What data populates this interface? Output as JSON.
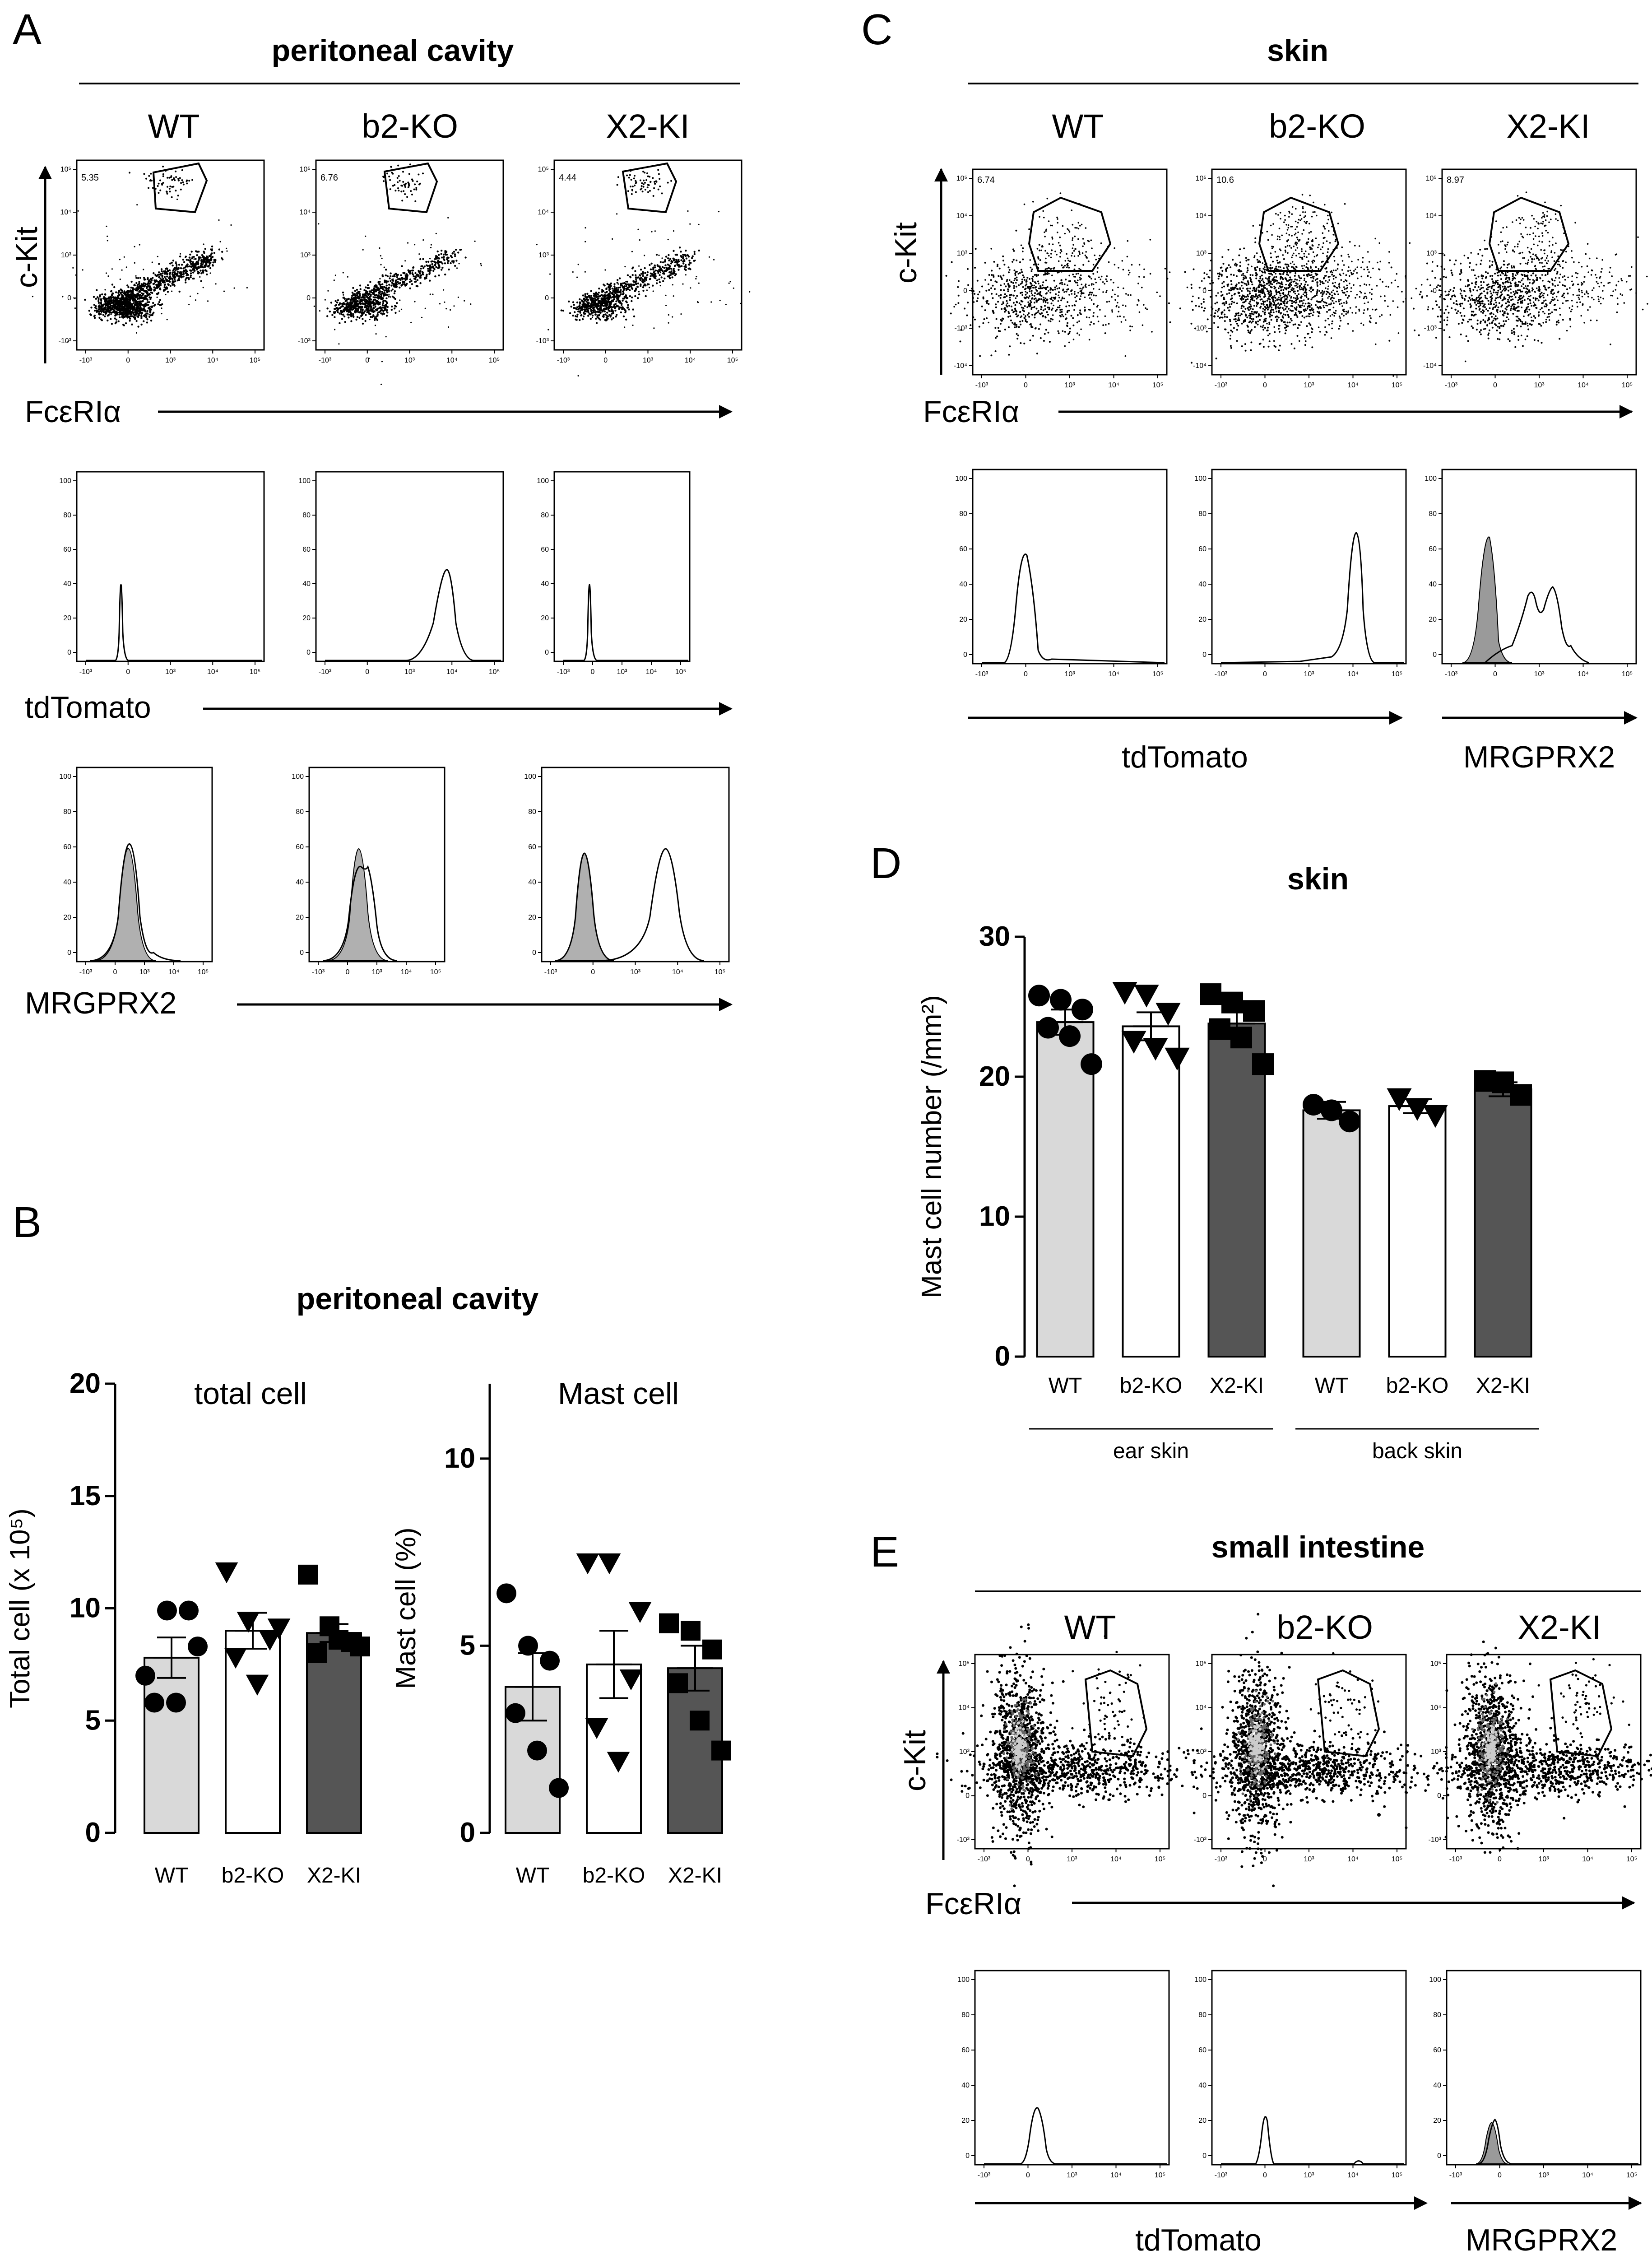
{
  "panels": {
    "A": {
      "letter": "A",
      "title": "peritoneal cavity",
      "columns": [
        "WT",
        "b2-KO",
        "X2-KI"
      ],
      "gate_percent": [
        "5.35",
        "6.76",
        "4.44"
      ],
      "dot_y_label": "c-Kit",
      "dot_x_label": "FcεRIα",
      "hist1_x_label": "tdTomato",
      "hist2_x_label": "MRGPRX2"
    },
    "B": {
      "letter": "B",
      "title": "peritoneal cavity"
    },
    "C": {
      "letter": "C",
      "title": "skin",
      "columns": [
        "WT",
        "b2-KO",
        "X2-KI"
      ],
      "gate_percent": [
        "6.74",
        "10.6",
        "8.97"
      ],
      "dot_y_label": "c-Kit",
      "dot_x_label": "FcεRIα",
      "hist_x_label_left": "tdTomato",
      "hist_x_label_right": "MRGPRX2"
    },
    "D": {
      "letter": "D",
      "title": "skin"
    },
    "E": {
      "letter": "E",
      "title": "small intestine",
      "columns": [
        "WT",
        "b2-KO",
        "X2-KI"
      ],
      "dot_y_label": "c-Kit",
      "dot_x_label": "FcεRIα",
      "hist_x_label_left": "tdTomato",
      "hist_x_label_right": "MRGPRX2"
    }
  },
  "flow_axis": {
    "x_ticks": [
      "-10³",
      "0",
      "10³",
      "10⁴",
      "10⁵"
    ],
    "y_ticks_log": [
      "-10³",
      "0",
      "10³",
      "10⁴",
      "10⁵"
    ],
    "y_ticks_skin": [
      "-10⁴",
      "-10³",
      "0",
      "10³",
      "10⁴",
      "10⁵"
    ],
    "y_ticks_count": [
      "0",
      "20",
      "40",
      "60",
      "80",
      "100"
    ]
  },
  "chart_data": [
    {
      "id": "B-total",
      "type": "bar",
      "title": "total cell",
      "ylabel": "Total cell (x 10⁵)",
      "xlabel": "",
      "categories": [
        "WT",
        "b2-KO",
        "X2-KI"
      ],
      "values": [
        7.8,
        9.0,
        8.9
      ],
      "sem": [
        0.9,
        0.8,
        0.4
      ],
      "points": [
        [
          7.0,
          9.9,
          9.9,
          5.8,
          5.8,
          8.3
        ],
        [
          11.6,
          9.4,
          8.6,
          7.8,
          6.6,
          9.1
        ],
        [
          11.5,
          9.2,
          8.5,
          8.0,
          8.6,
          8.3
        ]
      ],
      "bar_colors": [
        "#d9d9d9",
        "#ffffff",
        "#555555"
      ],
      "markers": [
        "circle",
        "triangle-down",
        "square"
      ],
      "ylim": [
        0,
        20
      ],
      "yticks": [
        0,
        5,
        10,
        15,
        20
      ]
    },
    {
      "id": "B-mast",
      "type": "bar",
      "title": "Mast cell",
      "ylabel": "Mast cell (%)",
      "xlabel": "",
      "categories": [
        "WT",
        "b2-KO",
        "X2-KI"
      ],
      "values": [
        3.9,
        4.5,
        4.4
      ],
      "sem": [
        0.9,
        0.9,
        0.6
      ],
      "points": [
        [
          6.4,
          5.0,
          4.6,
          3.2,
          2.2,
          1.2
        ],
        [
          7.2,
          7.2,
          4.1,
          2.8,
          1.9,
          5.9
        ],
        [
          5.6,
          5.4,
          4.9,
          4.0,
          3.0,
          2.2
        ]
      ],
      "bar_colors": [
        "#d9d9d9",
        "#ffffff",
        "#555555"
      ],
      "markers": [
        "circle",
        "triangle-down",
        "square"
      ],
      "ylim": [
        0,
        12
      ],
      "yticks": [
        0,
        5,
        10
      ]
    },
    {
      "id": "D-skin",
      "type": "bar",
      "title": "skin",
      "ylabel": "Mast cell number (/mm²)",
      "xlabel": "",
      "categories": [
        "WT",
        "b2-KO",
        "X2-KI",
        "WT",
        "b2-KO",
        "X2-KI"
      ],
      "groups": [
        {
          "label": "ear skin",
          "categories": [
            0,
            1,
            2
          ]
        },
        {
          "label": "back skin",
          "categories": [
            3,
            4,
            5
          ]
        }
      ],
      "values": [
        23.9,
        23.6,
        23.8,
        17.6,
        17.9,
        19.1
      ],
      "sem": [
        0.9,
        1.0,
        0.8,
        0.6,
        0.5,
        0.5
      ],
      "points": [
        [
          25.8,
          25.5,
          24.8,
          23.5,
          22.9,
          20.9
        ],
        [
          26.0,
          25.8,
          24.5,
          22.5,
          22.0,
          21.3
        ],
        [
          25.9,
          25.3,
          24.7,
          23.4,
          22.8,
          20.9
        ],
        [
          18.0,
          17.6,
          16.8
        ],
        [
          18.4,
          17.7,
          17.2
        ],
        [
          19.7,
          19.6,
          18.7
        ]
      ],
      "bar_colors": [
        "#d9d9d9",
        "#ffffff",
        "#555555",
        "#d9d9d9",
        "#ffffff",
        "#555555"
      ],
      "markers": [
        "circle",
        "triangle-down",
        "square",
        "circle",
        "triangle-down",
        "square"
      ],
      "ylim": [
        0,
        30
      ],
      "yticks": [
        0,
        10,
        20,
        30
      ]
    }
  ]
}
